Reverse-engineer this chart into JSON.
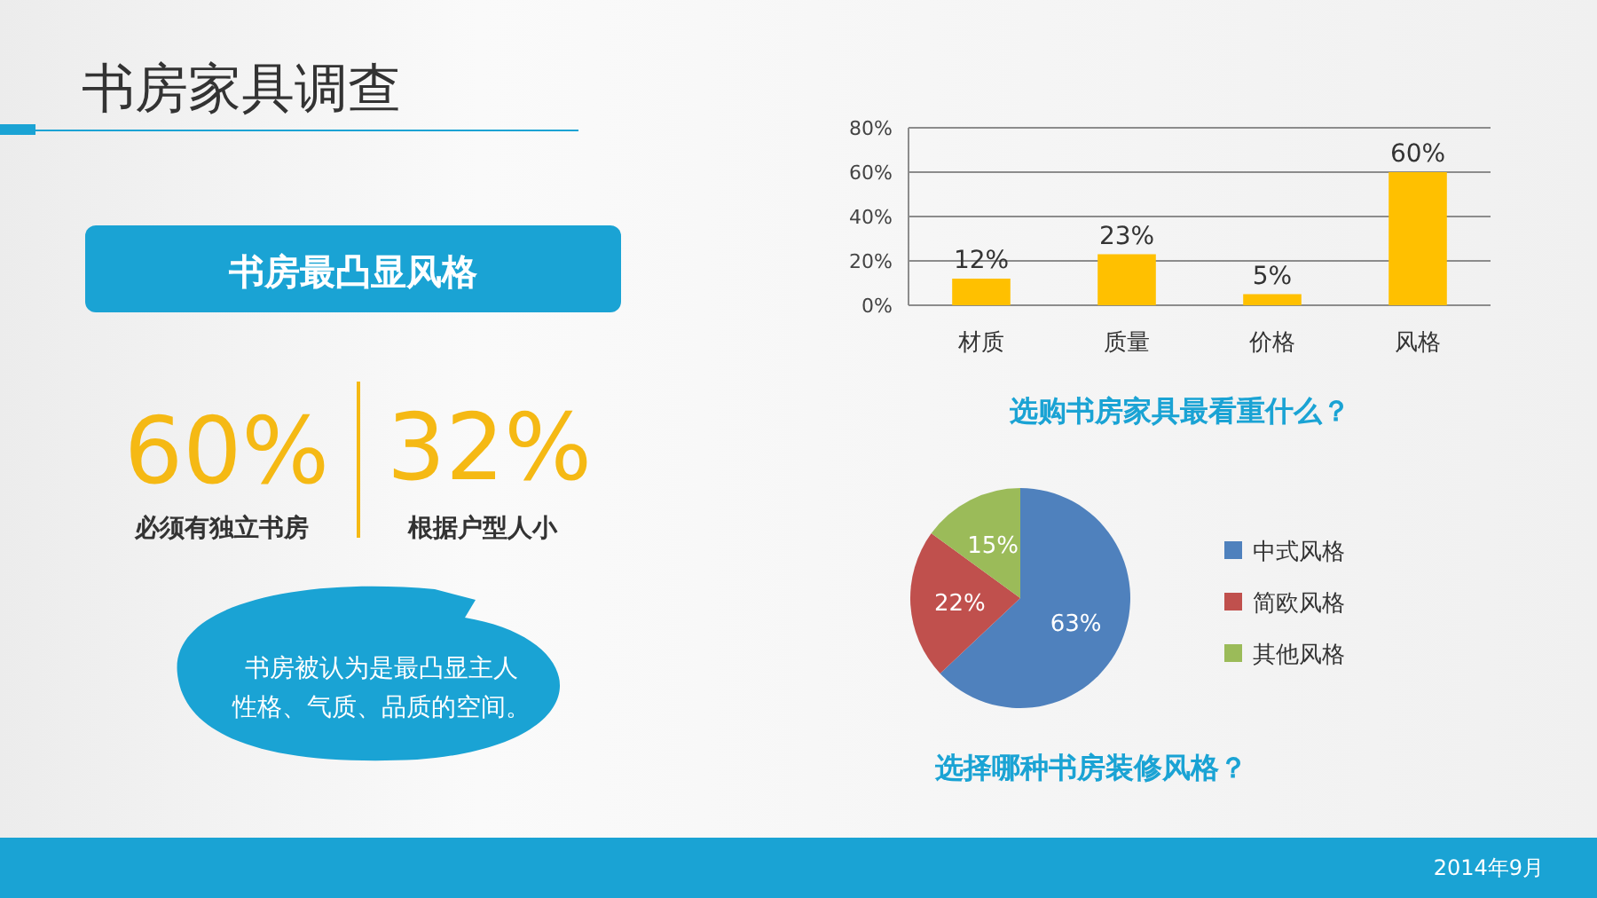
{
  "chart_data": [
    {
      "type": "other",
      "title": "书房家具调查",
      "subtitle": "书房最凸显风格",
      "annotations": [
        "60%",
        "必须有独立书房",
        "32%",
        "根据户型人小",
        "书房被认为是最凸显主人性格、气质、品质的空间。",
        "2014年9月"
      ]
    },
    {
      "type": "bar",
      "title": "选购书房家具最看重什么？",
      "categories": [
        "材质",
        "质量",
        "价格",
        "风格"
      ],
      "values": [
        12,
        23,
        5,
        60
      ],
      "value_labels": [
        "12%",
        "23%",
        "5%",
        "60%"
      ],
      "color": "#ffc000",
      "ylim": [
        0,
        80
      ],
      "yticks": [
        {
          "value": 0,
          "label": "0%"
        },
        {
          "value": 20,
          "label": "20%"
        },
        {
          "value": 40,
          "label": "40%"
        },
        {
          "value": 60,
          "label": "60%"
        },
        {
          "value": 80,
          "label": "80%"
        }
      ],
      "grid": "y"
    },
    {
      "type": "pie",
      "title": "选择哪种书房装修风格？",
      "categories": [
        "中式风格",
        "简欧风格",
        "其他风格"
      ],
      "values": [
        63,
        22,
        15
      ],
      "value_labels": [
        "63%",
        "22%",
        "15%"
      ],
      "colors": [
        "#4f81bd",
        "#c0504d",
        "#9bbb59"
      ],
      "legend": "right"
    }
  ]
}
